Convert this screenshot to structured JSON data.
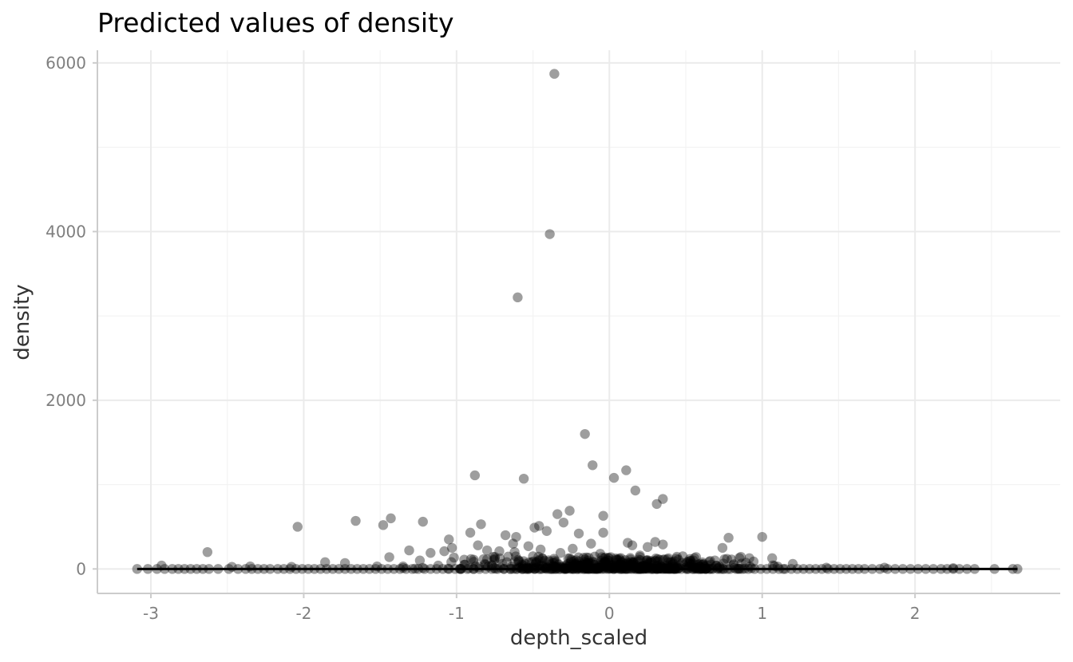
{
  "chart_data": {
    "type": "scatter",
    "title": "Predicted values of density",
    "xlabel": "depth_scaled",
    "ylabel": "density",
    "xlim": [
      -3.35,
      2.95
    ],
    "ylim": [
      -290,
      6150
    ],
    "x_ticks": [
      -3,
      -2,
      -1,
      0,
      1,
      2
    ],
    "x_tick_labels": [
      "-3",
      "-2",
      "-1",
      "0",
      "1",
      "2"
    ],
    "y_ticks": [
      0,
      2000,
      4000,
      6000
    ],
    "y_tick_labels": [
      "0",
      "2000",
      "4000",
      "6000"
    ],
    "grid": true,
    "legend": "none",
    "point_color": "#000000",
    "point_opacity": 0.38,
    "line_color": "#000000",
    "points": [
      {
        "x": -0.36,
        "y": 5870
      },
      {
        "x": -0.39,
        "y": 3970
      },
      {
        "x": -0.6,
        "y": 3220
      },
      {
        "x": -0.16,
        "y": 1600
      },
      {
        "x": -0.11,
        "y": 1230
      },
      {
        "x": 0.11,
        "y": 1170
      },
      {
        "x": -0.88,
        "y": 1110
      },
      {
        "x": 0.03,
        "y": 1080
      },
      {
        "x": -0.56,
        "y": 1070
      },
      {
        "x": 0.17,
        "y": 930
      },
      {
        "x": 0.35,
        "y": 830
      },
      {
        "x": 0.31,
        "y": 770
      },
      {
        "x": -0.26,
        "y": 690
      },
      {
        "x": -0.34,
        "y": 650
      },
      {
        "x": -0.04,
        "y": 630
      },
      {
        "x": -1.43,
        "y": 600
      },
      {
        "x": -1.66,
        "y": 570
      },
      {
        "x": -1.22,
        "y": 560
      },
      {
        "x": -0.3,
        "y": 550
      },
      {
        "x": -0.84,
        "y": 530
      },
      {
        "x": -1.48,
        "y": 520
      },
      {
        "x": -0.46,
        "y": 510
      },
      {
        "x": -2.04,
        "y": 500
      },
      {
        "x": -0.49,
        "y": 490
      },
      {
        "x": -0.41,
        "y": 450
      },
      {
        "x": -0.91,
        "y": 430
      },
      {
        "x": -0.04,
        "y": 430
      },
      {
        "x": -0.2,
        "y": 420
      },
      {
        "x": -0.68,
        "y": 400
      },
      {
        "x": -0.61,
        "y": 380
      },
      {
        "x": 1.0,
        "y": 380
      },
      {
        "x": 0.78,
        "y": 370
      },
      {
        "x": -1.05,
        "y": 350
      },
      {
        "x": 0.3,
        "y": 320
      },
      {
        "x": 0.12,
        "y": 310
      },
      {
        "x": -0.63,
        "y": 300
      },
      {
        "x": -0.12,
        "y": 300
      },
      {
        "x": 0.35,
        "y": 290
      },
      {
        "x": -0.86,
        "y": 280
      },
      {
        "x": 0.15,
        "y": 280
      },
      {
        "x": -0.53,
        "y": 270
      },
      {
        "x": 0.25,
        "y": 260
      },
      {
        "x": -1.03,
        "y": 250
      },
      {
        "x": 0.74,
        "y": 250
      },
      {
        "x": -0.24,
        "y": 240
      },
      {
        "x": -0.45,
        "y": 230
      },
      {
        "x": -0.8,
        "y": 220
      },
      {
        "x": -1.31,
        "y": 220
      },
      {
        "x": -1.08,
        "y": 210
      },
      {
        "x": -0.72,
        "y": 210
      },
      {
        "x": -0.62,
        "y": 200
      },
      {
        "x": -2.63,
        "y": 200
      },
      {
        "x": -1.17,
        "y": 190
      },
      {
        "x": -0.32,
        "y": 190
      },
      {
        "x": -0.06,
        "y": 180
      },
      {
        "x": 0.48,
        "y": 150
      },
      {
        "x": -1.44,
        "y": 140
      },
      {
        "x": 0.85,
        "y": 130
      },
      {
        "x": 0.77,
        "y": 120
      },
      {
        "x": -0.95,
        "y": 110
      },
      {
        "x": 0.55,
        "y": 100
      },
      {
        "x": -1.24,
        "y": 100
      },
      {
        "x": 0.66,
        "y": 95
      },
      {
        "x": -1.86,
        "y": 80
      },
      {
        "x": -1.73,
        "y": 70
      },
      {
        "x": 1.2,
        "y": 60
      },
      {
        "x": -0.15,
        "y": 70
      },
      {
        "x": 0.4,
        "y": 80
      },
      {
        "x": -0.75,
        "y": 120
      },
      {
        "x": -0.5,
        "y": 150
      },
      {
        "x": -0.05,
        "y": 140
      },
      {
        "x": 0.2,
        "y": 160
      },
      {
        "x": -0.7,
        "y": 60
      },
      {
        "x": -0.25,
        "y": 90
      },
      {
        "x": 0.05,
        "y": 110
      },
      {
        "x": -0.95,
        "y": 50
      },
      {
        "x": -1.12,
        "y": 40
      },
      {
        "x": -1.52,
        "y": 30
      },
      {
        "x": -2.93,
        "y": 40
      },
      {
        "x": -2.47,
        "y": 25
      },
      {
        "x": -2.35,
        "y": 30
      },
      {
        "x": -2.08,
        "y": 25
      },
      {
        "x": -1.35,
        "y": 30
      },
      {
        "x": 0.7,
        "y": 40
      },
      {
        "x": 0.92,
        "y": 30
      },
      {
        "x": 1.08,
        "y": 35
      },
      {
        "x": 1.42,
        "y": 15
      },
      {
        "x": 1.8,
        "y": 15
      },
      {
        "x": 2.25,
        "y": 10
      }
    ],
    "baseline_points_x": [
      -3.09,
      -3.02,
      -2.96,
      -2.91,
      -2.86,
      -2.82,
      -2.78,
      -2.74,
      -2.7,
      -2.66,
      -2.62,
      -2.56,
      -2.49,
      -2.43,
      -2.38,
      -2.34,
      -2.3,
      -2.26,
      -2.22,
      -2.17,
      -2.13,
      -2.09,
      -2.05,
      -2.01,
      -1.97,
      -1.93,
      -1.89,
      -1.85,
      -1.81,
      -1.77,
      -1.73,
      -1.69,
      -1.65,
      -1.61,
      -1.57,
      -1.53,
      -1.49,
      -1.45,
      -1.41,
      -1.37,
      -1.33,
      -1.29,
      -1.25,
      -1.21,
      -1.17,
      -1.13,
      -1.09,
      -1.05,
      -1.01,
      -0.97,
      -0.93,
      -0.89,
      -0.85,
      -0.81,
      -0.77,
      -0.73,
      -0.69,
      -0.65,
      -0.61,
      -0.57,
      -0.53,
      -0.49,
      -0.45,
      -0.41,
      -0.37,
      -0.33,
      -0.29,
      -0.25,
      -0.21,
      -0.17,
      -0.13,
      -0.09,
      -0.05,
      -0.01,
      0.03,
      0.07,
      0.11,
      0.15,
      0.19,
      0.23,
      0.27,
      0.31,
      0.35,
      0.39,
      0.43,
      0.47,
      0.51,
      0.55,
      0.59,
      0.63,
      0.67,
      0.71,
      0.75,
      0.79,
      0.83,
      0.87,
      0.91,
      0.95,
      0.99,
      1.03,
      1.07,
      1.11,
      1.15,
      1.19,
      1.23,
      1.27,
      1.31,
      1.35,
      1.39,
      1.43,
      1.47,
      1.51,
      1.55,
      1.59,
      1.63,
      1.67,
      1.72,
      1.77,
      1.82,
      1.87,
      1.92,
      1.97,
      2.02,
      2.07,
      2.12,
      2.17,
      2.21,
      2.25,
      2.29,
      2.34,
      2.39,
      2.52,
      2.64,
      2.67
    ],
    "prediction_line": [
      {
        "x": -3.09,
        "y": 0
      },
      {
        "x": 2.67,
        "y": 0
      }
    ]
  }
}
